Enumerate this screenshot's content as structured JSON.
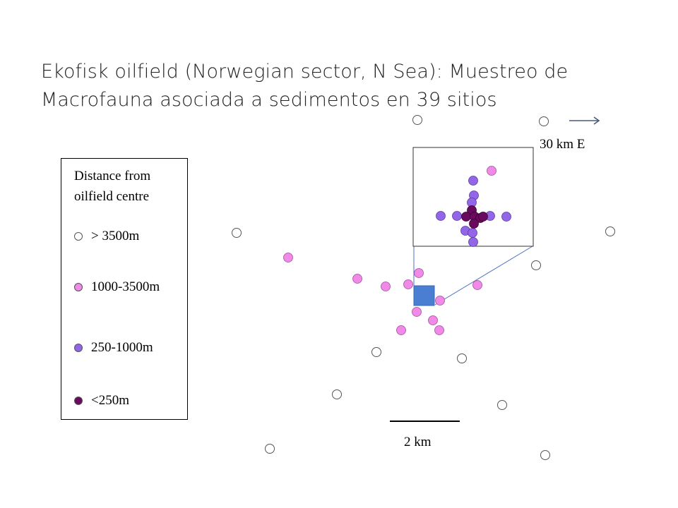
{
  "slide": {
    "title_line1": "Ekofisk oilfield (Norwegian sector, N Sea): Muestreo de",
    "title_line2": "Macrofauna asociada a sedimentos en 39 sitios"
  },
  "legend": {
    "title_line1": "Distance from",
    "title_line2": "oilfield centre",
    "items": [
      {
        "label": "> 3500m",
        "category": "far",
        "color": "#ffffff"
      },
      {
        "label": "1000-3500m",
        "category": "mid",
        "color": "#f08ae6"
      },
      {
        "label": "250-1000m",
        "category": "near",
        "color": "#9366e8"
      },
      {
        "label": "<250m",
        "category": "centre",
        "color": "#6a0a5e"
      }
    ]
  },
  "annotations": {
    "direction_label": "30 km E",
    "direction_icon": "arrow-right-icon",
    "scale_label": "2 km"
  },
  "colors": {
    "far": "#ffffff",
    "mid": "#f08ae6",
    "near": "#9366e8",
    "centre": "#6a0a5e",
    "platform": "#4a7ed2",
    "inset_connector": "#4a72c4"
  }
}
